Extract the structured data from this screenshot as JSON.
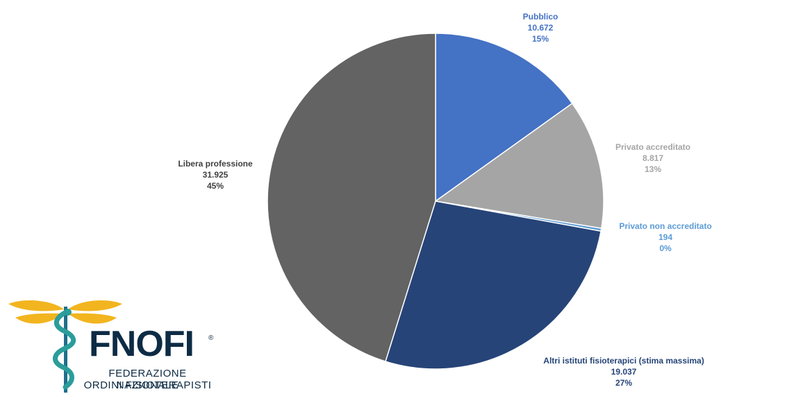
{
  "chart_data": {
    "type": "pie",
    "start_angle_deg": 0,
    "direction": "clockwise",
    "slices": [
      {
        "label": "Pubblico",
        "value": 10672,
        "value_label": "10.672",
        "percent_label": "15%",
        "color": "#4472c4",
        "label_color": "#4472c4"
      },
      {
        "label": "Privato accreditato",
        "value": 8817,
        "value_label": "8.817",
        "percent_label": "13%",
        "color": "#a5a5a5",
        "label_color": "#a5a5a5"
      },
      {
        "label": "Privato non accreditato",
        "value": 194,
        "value_label": "194",
        "percent_label": "0%",
        "color": "#5b9bd5",
        "label_color": "#5b9bd5"
      },
      {
        "label": "Altri istituti fisioterapici (stima massima)",
        "value": 19037,
        "value_label": "19.037",
        "percent_label": "27%",
        "color": "#264478",
        "label_color": "#264478"
      },
      {
        "label": "Libera professione",
        "value": 31925,
        "value_label": "31.925",
        "percent_label": "45%",
        "color": "#636363",
        "label_color": "#404040"
      }
    ]
  },
  "logo": {
    "name": "FNOFI",
    "registered": "®",
    "subtitle_line1": "FEDERAZIONE NAZIONALE",
    "subtitle_line2": "ORDINI FISIOTERAPISTI",
    "colors": {
      "wings": "#f2b51f",
      "snake": "#2a9d9b",
      "text": "#0d2b44"
    }
  }
}
